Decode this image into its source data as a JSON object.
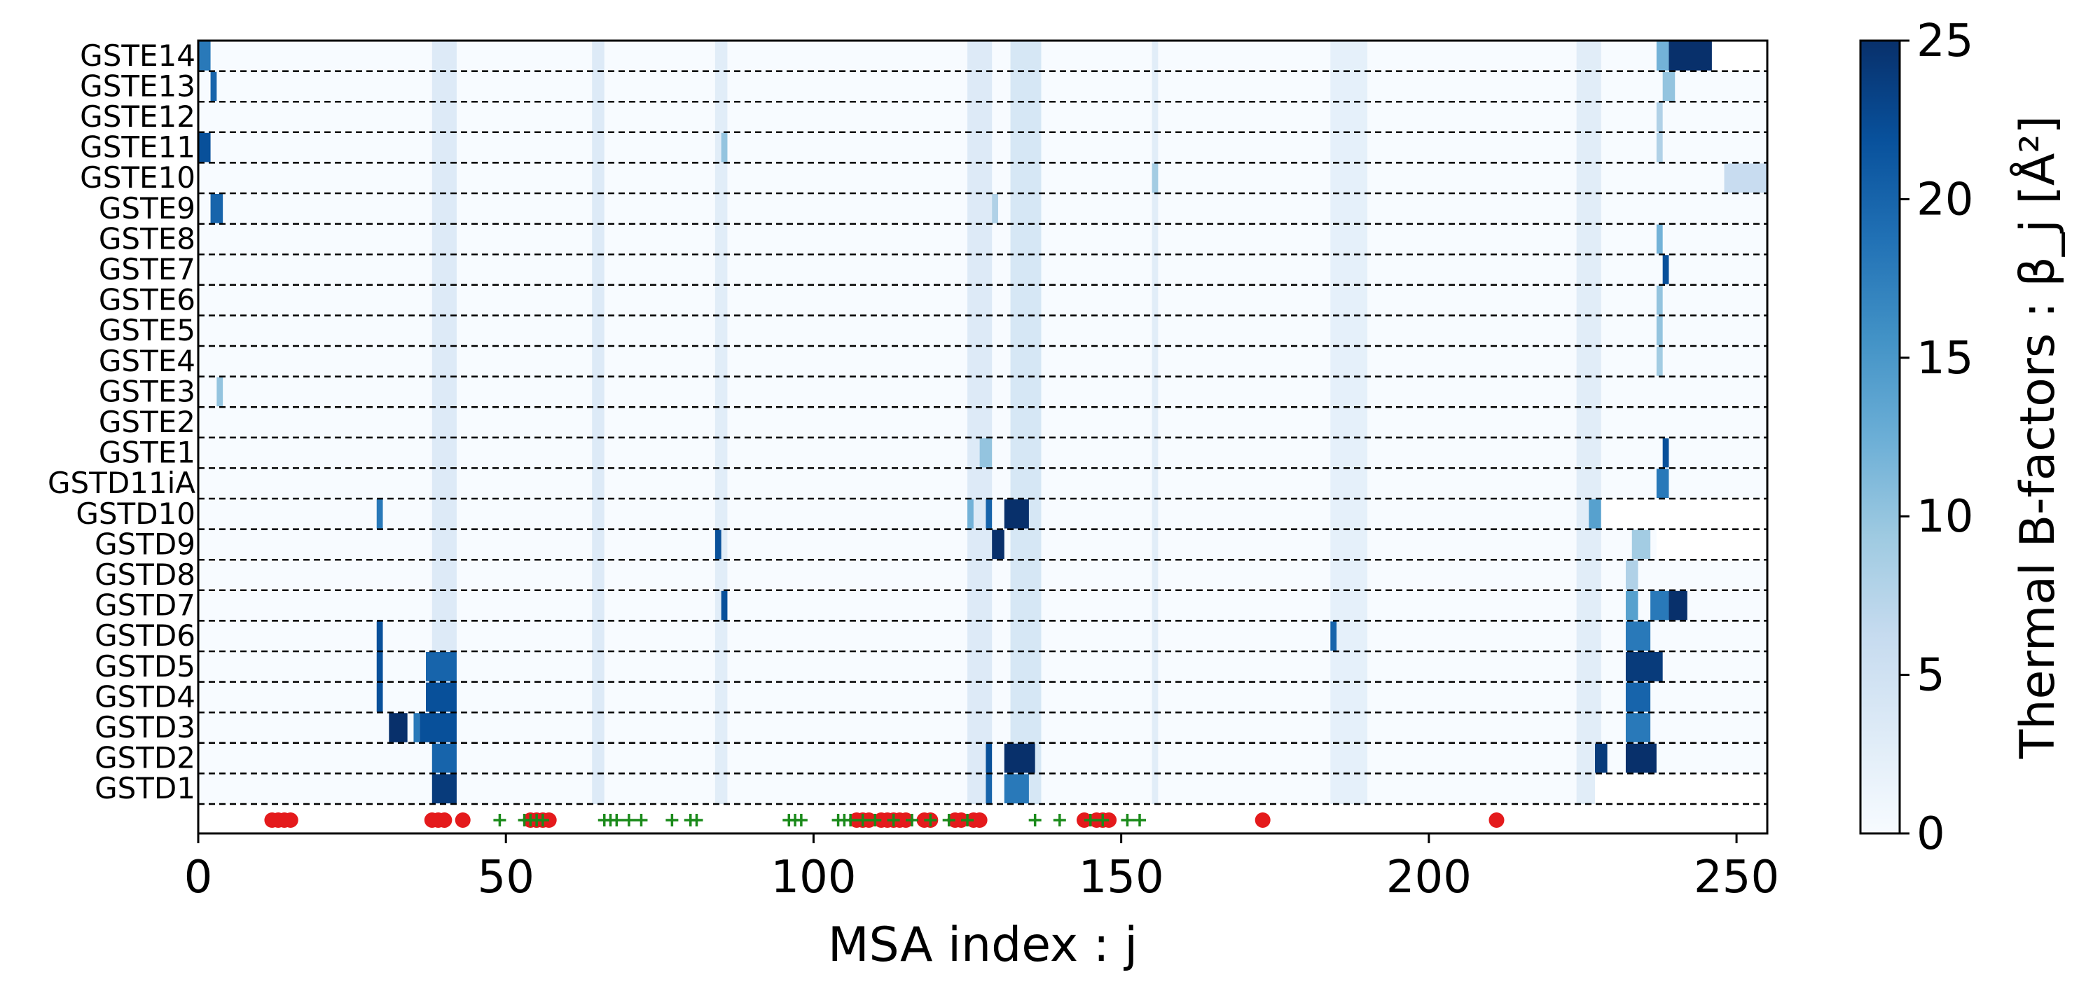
{
  "chart_data": {
    "type": "heatmap",
    "xlabel": "MSA index : j",
    "xlim": [
      0,
      255
    ],
    "xticks": [
      0,
      50,
      100,
      150,
      200,
      250
    ],
    "rows_top_to_bottom": [
      "GSTE14",
      "GSTE13",
      "GSTE12",
      "GSTE11",
      "GSTE10",
      "GSTE9",
      "GSTE8",
      "GSTE7",
      "GSTE6",
      "GSTE5",
      "GSTE4",
      "GSTE3",
      "GSTE2",
      "GSTE1",
      "GSTD11iA",
      "GSTD10",
      "GSTD9",
      "GSTD8",
      "GSTD7",
      "GSTD6",
      "GSTD5",
      "GSTD4",
      "GSTD3",
      "GSTD2",
      "GSTD1"
    ],
    "row_separators": "dashed",
    "colorbar": {
      "label": "Thermal B-factors : β_j [Å²]",
      "range": [
        0,
        25
      ],
      "ticks": [
        0,
        5,
        10,
        15,
        20,
        25
      ],
      "colormap": "Blues",
      "colors": [
        "#f7fbff",
        "#deebf7",
        "#c6dbef",
        "#9ecae1",
        "#6baed6",
        "#4292c6",
        "#2171b5",
        "#08519c",
        "#08306b"
      ]
    },
    "background_columns": [
      {
        "x": [
          38,
          42
        ],
        "value": 6
      },
      {
        "x": [
          64,
          66
        ],
        "value": 6
      },
      {
        "x": [
          84,
          86
        ],
        "value": 5
      },
      {
        "x": [
          125,
          129
        ],
        "value": 6
      },
      {
        "x": [
          132,
          137
        ],
        "value": 7
      },
      {
        "x": [
          155,
          156
        ],
        "value": 5
      },
      {
        "x": [
          184,
          190
        ],
        "value": 4
      },
      {
        "x": [
          224,
          228
        ],
        "value": 5
      }
    ],
    "hotspots": [
      {
        "row": "GSTE14",
        "x": [
          0,
          2
        ],
        "value": 18
      },
      {
        "row": "GSTE14",
        "x": [
          237,
          239
        ],
        "value": 12
      },
      {
        "row": "GSTE14",
        "x": [
          239,
          246
        ],
        "value": 25
      },
      {
        "row": "GSTE13",
        "x": [
          2,
          3
        ],
        "value": 20
      },
      {
        "row": "GSTE13",
        "x": [
          238,
          240
        ],
        "value": 10
      },
      {
        "row": "GSTE12",
        "x": [
          237,
          238
        ],
        "value": 8
      },
      {
        "row": "GSTE11",
        "x": [
          0,
          2
        ],
        "value": 22
      },
      {
        "row": "GSTE11",
        "x": [
          85,
          86
        ],
        "value": 10
      },
      {
        "row": "GSTE11",
        "x": [
          237,
          238
        ],
        "value": 8
      },
      {
        "row": "GSTE10",
        "x": [
          155,
          156
        ],
        "value": 9
      },
      {
        "row": "GSTE10",
        "x": [
          248,
          255
        ],
        "value": 6
      },
      {
        "row": "GSTE9",
        "x": [
          2,
          4
        ],
        "value": 20
      },
      {
        "row": "GSTE9",
        "x": [
          129,
          130
        ],
        "value": 8
      },
      {
        "row": "GSTE8",
        "x": [
          237,
          238
        ],
        "value": 12
      },
      {
        "row": "GSTE7",
        "x": [
          238,
          239
        ],
        "value": 22
      },
      {
        "row": "GSTE6",
        "x": [
          237,
          238
        ],
        "value": 10
      },
      {
        "row": "GSTE5",
        "x": [
          237,
          238
        ],
        "value": 10
      },
      {
        "row": "GSTE4",
        "x": [
          237,
          238
        ],
        "value": 9
      },
      {
        "row": "GSTE3",
        "x": [
          3,
          4
        ],
        "value": 10
      },
      {
        "row": "GSTE1",
        "x": [
          127,
          129
        ],
        "value": 10
      },
      {
        "row": "GSTE1",
        "x": [
          238,
          239
        ],
        "value": 22
      },
      {
        "row": "GSTD11iA",
        "x": [
          237,
          239
        ],
        "value": 18
      },
      {
        "row": "GSTD10",
        "x": [
          29,
          30
        ],
        "value": 18
      },
      {
        "row": "GSTD10",
        "x": [
          125,
          126
        ],
        "value": 12
      },
      {
        "row": "GSTD10",
        "x": [
          128,
          129
        ],
        "value": 20
      },
      {
        "row": "GSTD10",
        "x": [
          131,
          135
        ],
        "value": 25
      },
      {
        "row": "GSTD10",
        "x": [
          226,
          228
        ],
        "value": 14
      },
      {
        "row": "GSTD9",
        "x": [
          84,
          85
        ],
        "value": 22
      },
      {
        "row": "GSTD9",
        "x": [
          129,
          131
        ],
        "value": 25
      },
      {
        "row": "GSTD9",
        "x": [
          233,
          236
        ],
        "value": 9
      },
      {
        "row": "GSTD8",
        "x": [
          232,
          234
        ],
        "value": 8
      },
      {
        "row": "GSTD7",
        "x": [
          85,
          86
        ],
        "value": 22
      },
      {
        "row": "GSTD7",
        "x": [
          232,
          234
        ],
        "value": 14
      },
      {
        "row": "GSTD7",
        "x": [
          236,
          239
        ],
        "value": 18
      },
      {
        "row": "GSTD7",
        "x": [
          239,
          242
        ],
        "value": 25
      },
      {
        "row": "GSTD6",
        "x": [
          29,
          30
        ],
        "value": 22
      },
      {
        "row": "GSTD6",
        "x": [
          184,
          185
        ],
        "value": 20
      },
      {
        "row": "GSTD6",
        "x": [
          232,
          236
        ],
        "value": 18
      },
      {
        "row": "GSTD5",
        "x": [
          29,
          30
        ],
        "value": 22
      },
      {
        "row": "GSTD5",
        "x": [
          37,
          42
        ],
        "value": 20
      },
      {
        "row": "GSTD5",
        "x": [
          232,
          238
        ],
        "value": 24
      },
      {
        "row": "GSTD4",
        "x": [
          29,
          30
        ],
        "value": 22
      },
      {
        "row": "GSTD4",
        "x": [
          37,
          42
        ],
        "value": 22
      },
      {
        "row": "GSTD4",
        "x": [
          232,
          236
        ],
        "value": 20
      },
      {
        "row": "GSTD3",
        "x": [
          31,
          34
        ],
        "value": 25
      },
      {
        "row": "GSTD3",
        "x": [
          35,
          36
        ],
        "value": 18
      },
      {
        "row": "GSTD3",
        "x": [
          36,
          42
        ],
        "value": 22
      },
      {
        "row": "GSTD3",
        "x": [
          232,
          236
        ],
        "value": 18
      },
      {
        "row": "GSTD2",
        "x": [
          38,
          42
        ],
        "value": 20
      },
      {
        "row": "GSTD2",
        "x": [
          128,
          129
        ],
        "value": 22
      },
      {
        "row": "GSTD2",
        "x": [
          131,
          136
        ],
        "value": 25
      },
      {
        "row": "GSTD2",
        "x": [
          227,
          229
        ],
        "value": 24
      },
      {
        "row": "GSTD2",
        "x": [
          232,
          237
        ],
        "value": 25
      },
      {
        "row": "GSTD1",
        "x": [
          38,
          42
        ],
        "value": 24
      },
      {
        "row": "GSTD1",
        "x": [
          128,
          129
        ],
        "value": 20
      },
      {
        "row": "GSTD1",
        "x": [
          131,
          135
        ],
        "value": 18
      }
    ],
    "no_data_regions": [
      {
        "row": "GSTE14",
        "x": [
          246,
          255
        ]
      },
      {
        "row": "GSTD10",
        "x": [
          228,
          255
        ]
      },
      {
        "row": "GSTD9",
        "x": [
          237,
          255
        ]
      },
      {
        "row": "GSTD1",
        "x": [
          227,
          255
        ]
      }
    ],
    "markers": {
      "red_circles": [
        12,
        13,
        14,
        15,
        38,
        39,
        40,
        43,
        54,
        55,
        56,
        57,
        107,
        108,
        109,
        111,
        112,
        113,
        114,
        115,
        118,
        119,
        123,
        124,
        126,
        127,
        144,
        146,
        147,
        148,
        173,
        211
      ],
      "green_plus": [
        49,
        53,
        54,
        55,
        56,
        66,
        67,
        68,
        70,
        72,
        77,
        80,
        81,
        96,
        97,
        98,
        104,
        105,
        106,
        108,
        110,
        113,
        116,
        119,
        122,
        125,
        136,
        140,
        145,
        147,
        151,
        153
      ],
      "red_color": "#e41a1c",
      "green_color": "#1a8a1a"
    }
  }
}
